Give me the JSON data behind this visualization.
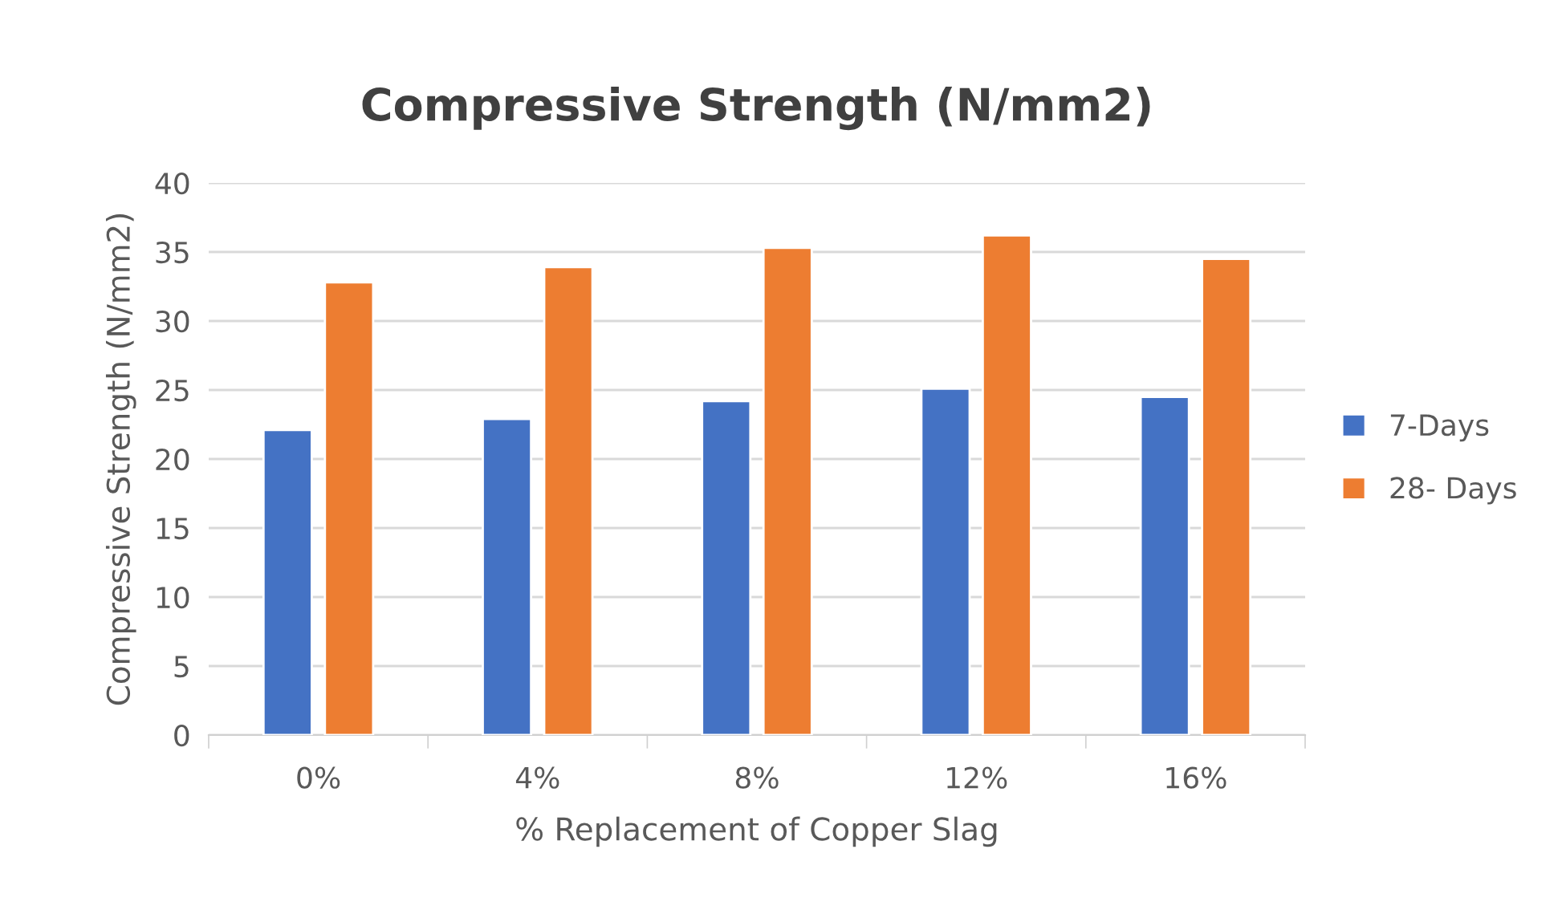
{
  "chart_data": {
    "type": "bar",
    "title": "Compressive Strength (N/mm2)",
    "xlabel": "% Replacement of Copper Slag",
    "ylabel": "Compressive Strength (N/mm2)",
    "categories": [
      "0%",
      "4%",
      "8%",
      "12%",
      "16%"
    ],
    "series": [
      {
        "name": "7-Days",
        "color": "#4472c4",
        "values": [
          22.1,
          22.9,
          24.2,
          25.1,
          24.5
        ]
      },
      {
        "name": "28- Days",
        "color": "#ed7d31",
        "values": [
          32.8,
          33.9,
          35.3,
          36.2,
          34.5
        ]
      }
    ],
    "ylim": [
      0,
      40
    ],
    "yticks": [
      0,
      5,
      10,
      15,
      20,
      25,
      30,
      35,
      40
    ],
    "grid": "y",
    "legend": "right"
  }
}
